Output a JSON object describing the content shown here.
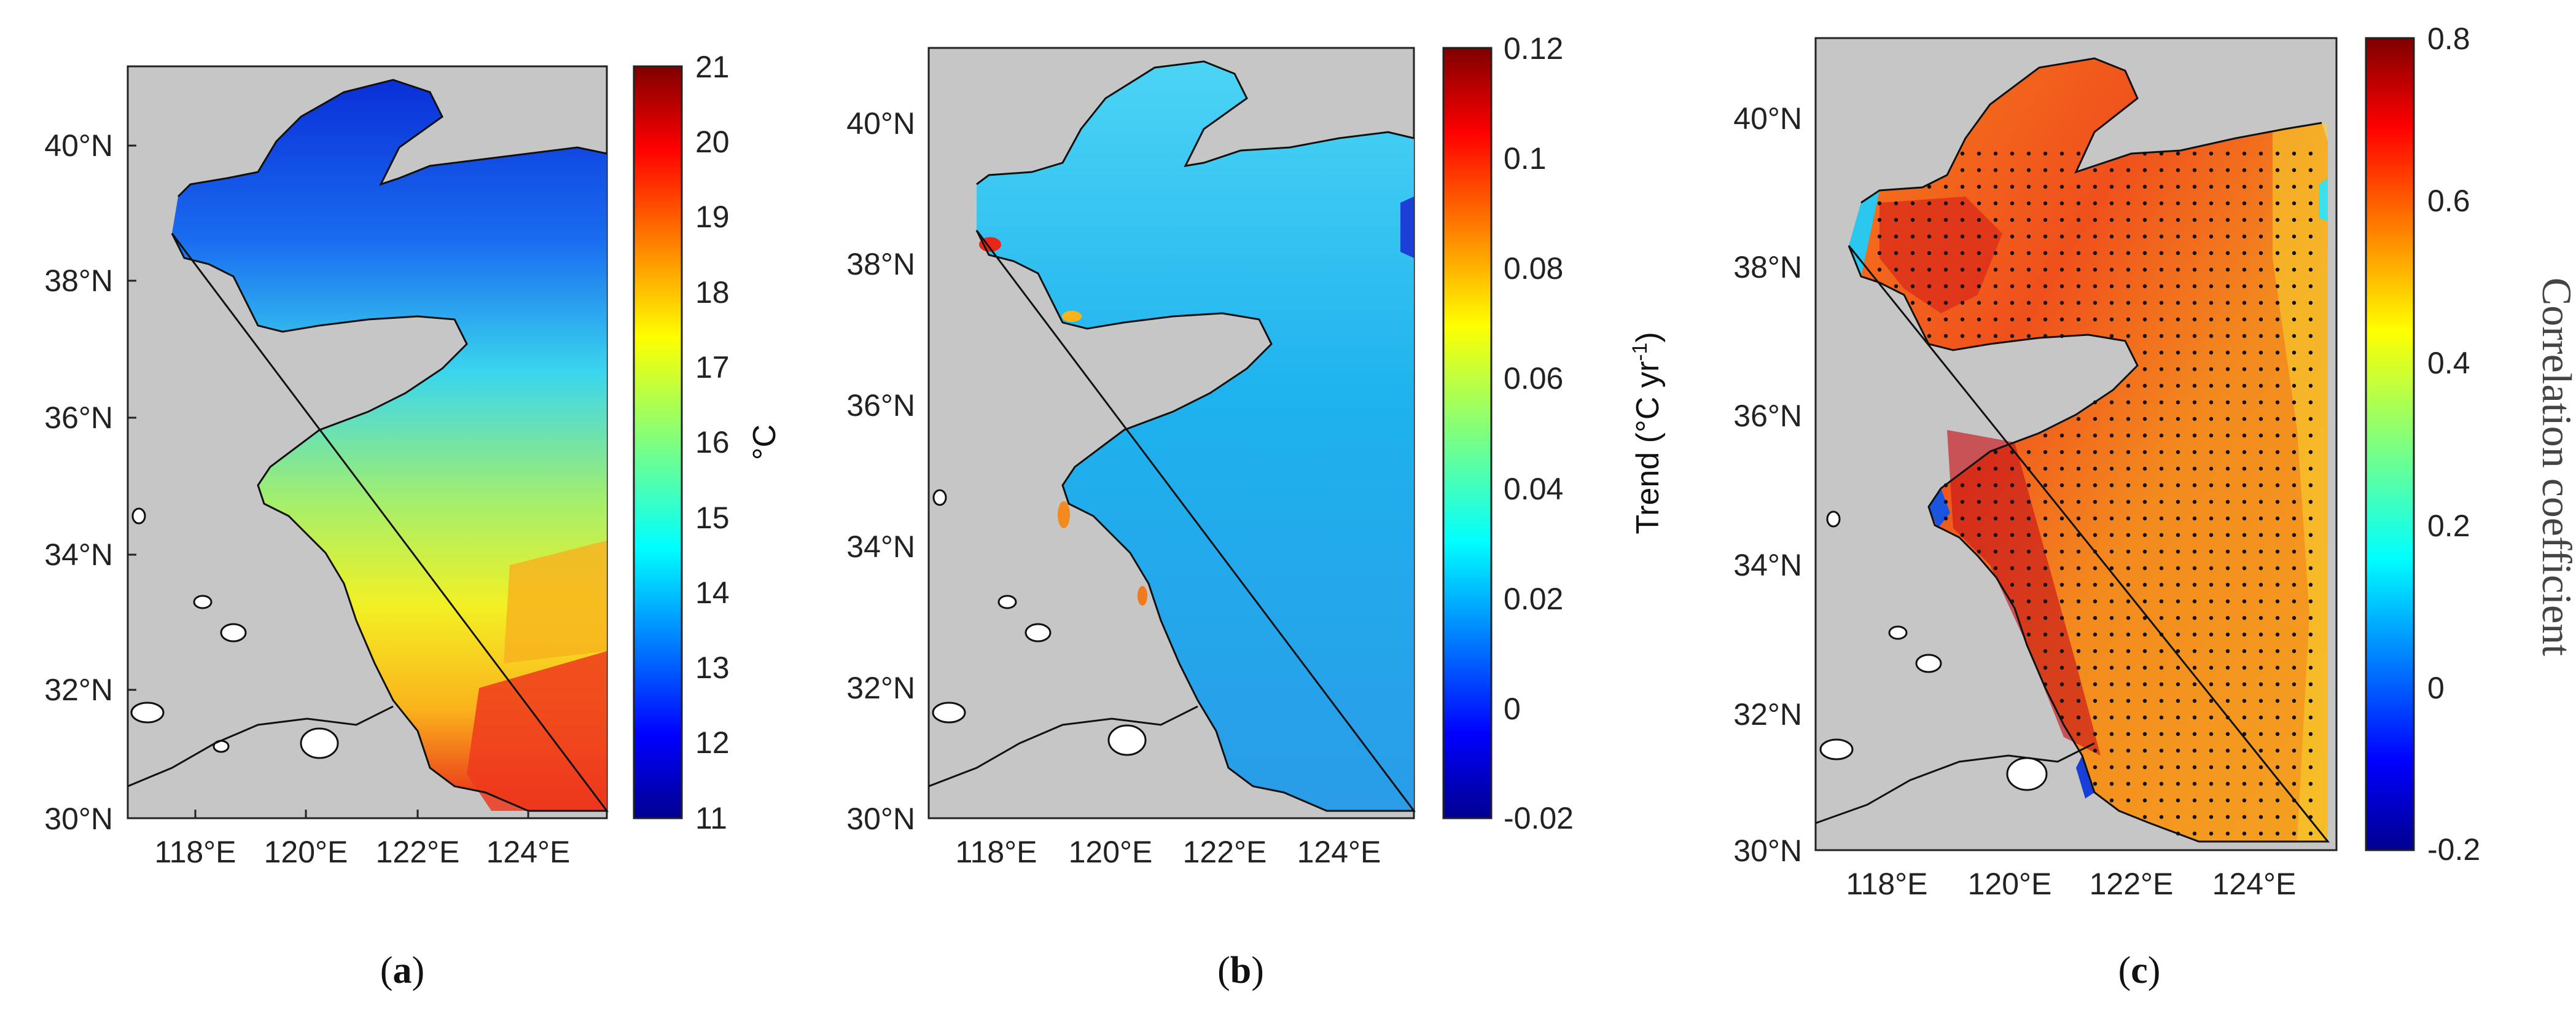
{
  "panels": [
    {
      "caption": "(a)",
      "caption_letter": "a",
      "lat_labels": [
        "40°N",
        "38°N",
        "36°N",
        "34°N",
        "32°N",
        "30°N"
      ],
      "lon_labels": [
        "118°E",
        "120°E",
        "122°E",
        "124°E"
      ],
      "colorbar": {
        "ticks": [
          "21",
          "20",
          "19",
          "18",
          "17",
          "16",
          "15",
          "14",
          "13",
          "12",
          "11"
        ],
        "title": "°C"
      },
      "field": "mean"
    },
    {
      "caption": "(b)",
      "caption_letter": "b",
      "lat_labels": [
        "40°N",
        "38°N",
        "36°N",
        "34°N",
        "32°N",
        "30°N"
      ],
      "lon_labels": [
        "118°E",
        "120°E",
        "122°E",
        "124°E"
      ],
      "colorbar": {
        "ticks": [
          "0.12",
          "0.1",
          "0.08",
          "0.06",
          "0.04",
          "0.02",
          "0",
          "-0.02"
        ],
        "title": "Trend (°C yr",
        "title_sup": "-1",
        "title_end": ")"
      },
      "field": "trend"
    },
    {
      "caption": "(c)",
      "caption_letter": "c",
      "lat_labels": [
        "40°N",
        "38°N",
        "36°N",
        "34°N",
        "32°N",
        "30°N"
      ],
      "lon_labels": [
        "118°E",
        "120°E",
        "122°E",
        "124°E"
      ],
      "colorbar": {
        "ticks": [
          "0.8",
          "0.6",
          "0.4",
          "0.2",
          "0",
          "-0.2"
        ],
        "title": "Correlation coefficient"
      },
      "field": "correlation"
    }
  ],
  "colors": {
    "land": "#c6c6c6",
    "coast": "#111111",
    "jet": [
      "#00008f",
      "#0000ff",
      "#007fff",
      "#00ffff",
      "#7fff7f",
      "#ffff00",
      "#ff7f00",
      "#ff0000",
      "#7f0000"
    ]
  }
}
